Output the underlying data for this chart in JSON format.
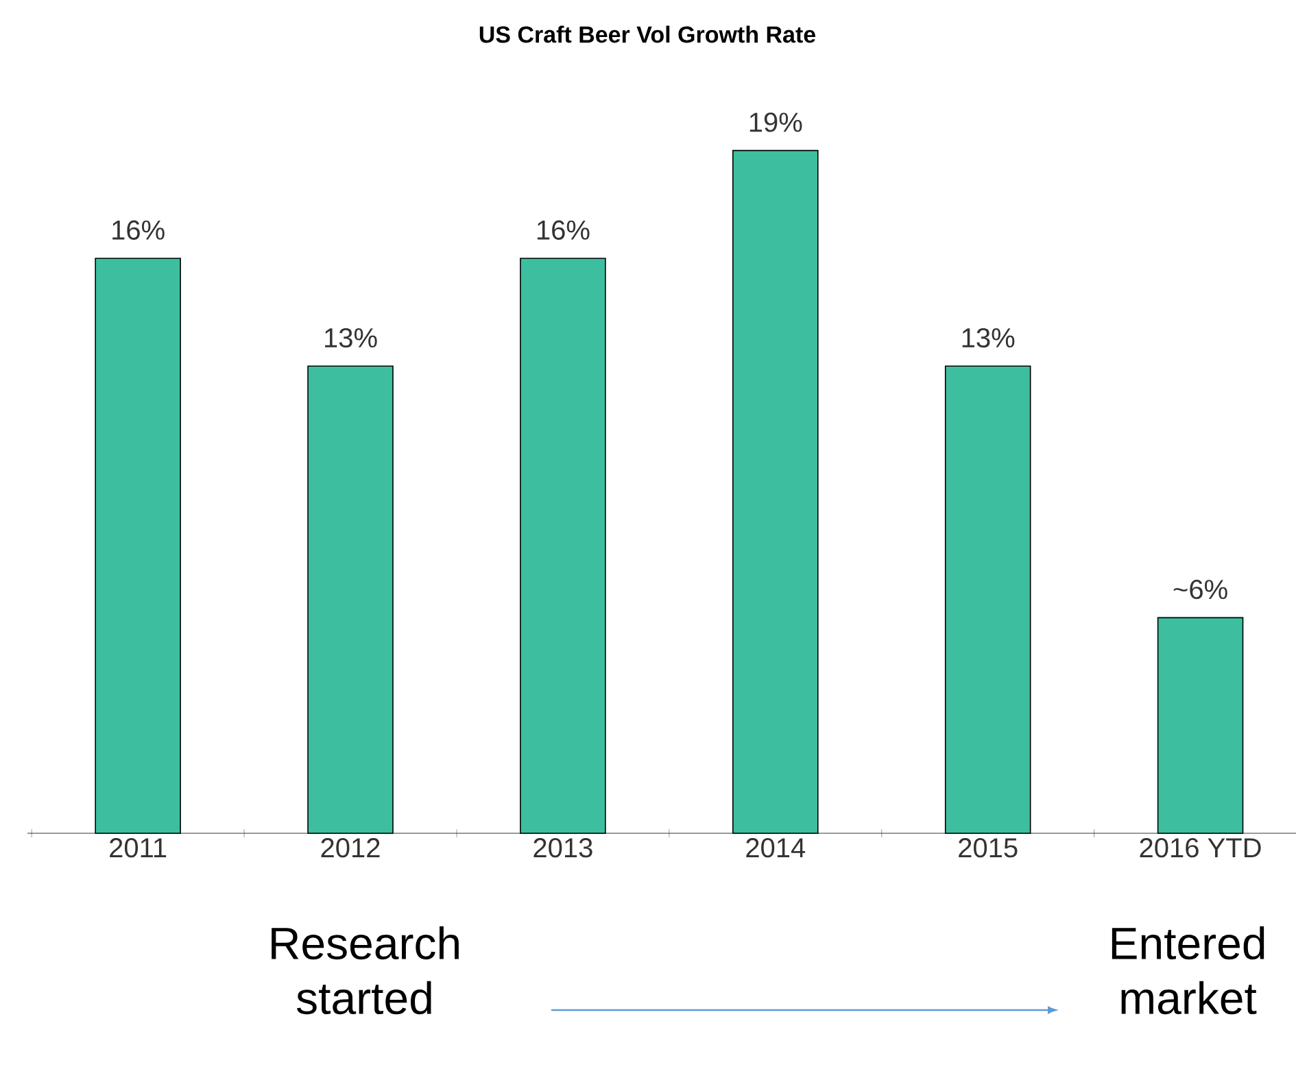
{
  "chart_data": {
    "type": "bar",
    "title": "US Craft Beer Vol Growth Rate",
    "categories": [
      "2011",
      "2012",
      "2013",
      "2014",
      "2015",
      "2016 YTD"
    ],
    "values": [
      16,
      13,
      16,
      19,
      13,
      6
    ],
    "value_labels": [
      "16%",
      "13%",
      "16%",
      "19%",
      "13%",
      "~6%"
    ],
    "color": "#3dbf9f",
    "annotations": [
      "Research started",
      "Entered market"
    ]
  }
}
